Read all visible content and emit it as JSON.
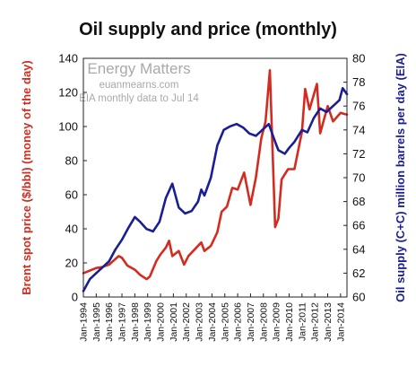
{
  "chart_data": {
    "type": "line",
    "title": "Oil supply and price (monthly)",
    "ylabel_left": "Brent spot price ($/bbl) (money of the day)",
    "ylabel_right": "Oil supply (C+C) million barrels per day (EIA)",
    "ylim_left": [
      0,
      140
    ],
    "ylim_right": [
      60,
      80
    ],
    "yticks_left": [
      "0",
      "20",
      "40",
      "60",
      "80",
      "100",
      "120",
      "140"
    ],
    "yticks_right": [
      "60",
      "62",
      "64",
      "66",
      "68",
      "70",
      "72",
      "74",
      "76",
      "78",
      "80"
    ],
    "xticks": [
      "Jan-1994",
      "Jan-1995",
      "Jan-1996",
      "Jan-1997",
      "Jan-1998",
      "Jan-1999",
      "Jan-2000",
      "Jan-2001",
      "Jan-2002",
      "Jan-2003",
      "Jan-2004",
      "Jan-2005",
      "Jan-2006",
      "Jan-2007",
      "Jan-2008",
      "Jan-2009",
      "Jan-2010",
      "Jan-2011",
      "Jan-2012",
      "Jan-2013",
      "Jan-2014"
    ],
    "x_range": [
      "Jan-1994",
      "Jul-2014"
    ],
    "grid": false,
    "colors": {
      "price": "#d52b1e",
      "supply": "#1a1e96"
    },
    "series": [
      {
        "axis": "left",
        "x": [
          "1994-01",
          "1994-07",
          "1995-01",
          "1995-06",
          "1996-01",
          "1996-10",
          "1997-01",
          "1997-06",
          "1998-01",
          "1998-06",
          "1998-12",
          "1999-03",
          "1999-09",
          "2000-01",
          "2000-06",
          "2000-09",
          "2000-12",
          "2001-06",
          "2001-11",
          "2002-03",
          "2002-09",
          "2003-03",
          "2003-06",
          "2003-12",
          "2004-06",
          "2004-10",
          "2005-03",
          "2005-08",
          "2006-01",
          "2006-07",
          "2007-01",
          "2007-06",
          "2007-11",
          "2008-03",
          "2008-07",
          "2008-12",
          "2009-03",
          "2009-06",
          "2009-12",
          "2010-06",
          "2011-01",
          "2011-04",
          "2011-08",
          "2012-03",
          "2012-06",
          "2013-01",
          "2013-06",
          "2014-01",
          "2014-07"
        ],
        "values": [
          14,
          15.5,
          17,
          17.5,
          19,
          24,
          23,
          18.5,
          16,
          13,
          10.5,
          12,
          21,
          25,
          29,
          33,
          24,
          27,
          19,
          24,
          28,
          32,
          27,
          30,
          38,
          50,
          53,
          64,
          63,
          73,
          54,
          70,
          93,
          103,
          133,
          41,
          46,
          69,
          75,
          75,
          97,
          122,
          110,
          125,
          96,
          112,
          103,
          108,
          107
        ]
      },
      {
        "axis": "right",
        "x": [
          "1994-01",
          "1994-07",
          "1995-01",
          "1995-07",
          "1996-01",
          "1996-07",
          "1997-01",
          "1997-07",
          "1998-01",
          "1998-06",
          "1998-12",
          "1999-06",
          "1999-12",
          "2000-06",
          "2000-12",
          "2001-06",
          "2001-12",
          "2002-06",
          "2002-12",
          "2003-03",
          "2003-06",
          "2003-12",
          "2004-06",
          "2004-12",
          "2005-06",
          "2005-12",
          "2006-06",
          "2006-12",
          "2007-06",
          "2007-12",
          "2008-06",
          "2008-12",
          "2009-03",
          "2009-09",
          "2010-01",
          "2010-06",
          "2011-01",
          "2011-06",
          "2011-12",
          "2012-06",
          "2012-12",
          "2013-06",
          "2013-12",
          "2014-03",
          "2014-07"
        ],
        "values": [
          60.5,
          61.5,
          62,
          62.5,
          63,
          64,
          64.8,
          65.8,
          66.7,
          66.3,
          65.7,
          65.5,
          66.3,
          68.3,
          69.5,
          67.5,
          67,
          67.2,
          68,
          69,
          68.5,
          70,
          72.7,
          74,
          74.3,
          74.5,
          74.2,
          73.7,
          73.5,
          74,
          74.5,
          73,
          72.3,
          72,
          72.5,
          73,
          74,
          73.8,
          75,
          75.8,
          75.5,
          76,
          76.5,
          77.5,
          77
        ]
      }
    ]
  },
  "watermark": {
    "brand": "Energy Matters",
    "site": "euanmearns.com",
    "note": "EIA monthly data to Jul 14"
  }
}
